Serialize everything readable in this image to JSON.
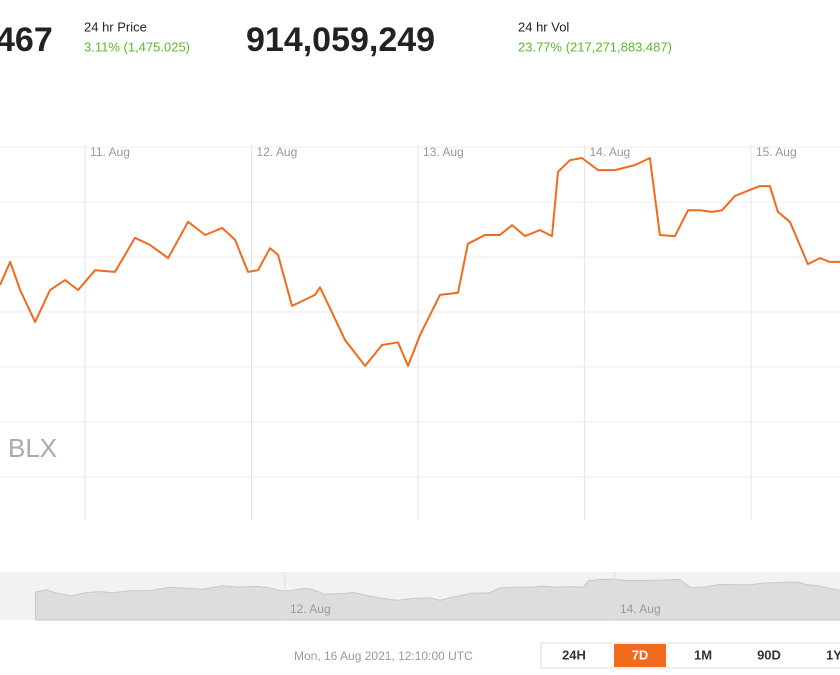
{
  "header": {
    "price": "467",
    "price_label": "24 hr Price",
    "price_change": "3.11% (1,475.025)",
    "volume": "914,059,249",
    "volume_label": "24 hr Vol",
    "volume_change": "23.77% (217,271,883.487)"
  },
  "chart_data": {
    "type": "line",
    "watermark": "BLX",
    "color": "#f26a1b",
    "grid": true,
    "x": [
      10.489,
      10.55,
      10.61,
      10.7,
      10.79,
      10.88,
      10.958,
      11.06,
      11.18,
      11.3,
      11.39,
      11.499,
      11.619,
      11.721,
      11.823,
      11.901,
      11.979,
      12.039,
      12.111,
      12.159,
      12.243,
      12.291,
      12.381,
      12.411,
      12.471,
      12.562,
      12.682,
      12.784,
      12.88,
      12.94,
      13.012,
      13.132,
      13.24,
      13.3,
      13.402,
      13.492,
      13.565,
      13.643,
      13.733,
      13.805,
      13.841,
      13.913,
      13.985,
      14.081,
      14.183,
      14.303,
      14.393,
      14.453,
      14.544,
      14.622,
      14.694,
      14.766,
      14.826,
      14.904,
      14.994,
      15.054,
      15.114,
      15.162,
      15.234,
      15.342,
      15.414,
      15.474,
      15.535
    ],
    "values": [
      44.9,
      49.1,
      44.0,
      38.2,
      44.0,
      45.8,
      44.0,
      47.6,
      47.3,
      53.5,
      52.2,
      49.8,
      56.4,
      54.0,
      55.3,
      53.1,
      47.3,
      47.6,
      51.6,
      50.4,
      41.1,
      41.8,
      43.1,
      44.5,
      40.7,
      34.9,
      30.2,
      34.0,
      34.5,
      30.2,
      35.8,
      43.1,
      43.5,
      52.4,
      54.0,
      54.0,
      55.8,
      53.8,
      54.9,
      53.8,
      65.5,
      67.6,
      68.0,
      65.8,
      65.8,
      66.7,
      68.0,
      54.0,
      53.8,
      58.5,
      58.5,
      58.2,
      58.5,
      61.1,
      62.2,
      62.9,
      62.9,
      58.2,
      56.4,
      48.7,
      49.8,
      49.1,
      49.1
    ],
    "xlim": [
      10.489,
      15.535
    ],
    "xticks": [
      {
        "value": 11,
        "label": "11. Aug"
      },
      {
        "value": 12,
        "label": "12. Aug"
      },
      {
        "value": 13,
        "label": "13. Aug"
      },
      {
        "value": 14,
        "label": "14. Aug"
      },
      {
        "value": 15,
        "label": "15. Aug"
      }
    ],
    "ylim": [
      0,
      70
    ],
    "yticks": [
      10,
      20,
      30,
      40,
      50,
      60,
      70
    ]
  },
  "navigator": {
    "xlim": [
      10.273,
      15.364
    ],
    "ylim": [
      -5,
      81
    ],
    "xticks": [
      {
        "value": 12,
        "label": "12. Aug"
      },
      {
        "value": 14,
        "label": "14. Aug"
      }
    ]
  },
  "footer": {
    "timestamp": "Mon, 16 Aug 2021, 12:10:00 UTC",
    "ranges": [
      "24H",
      "7D",
      "1M",
      "90D",
      "1Y"
    ],
    "selected": 1
  }
}
